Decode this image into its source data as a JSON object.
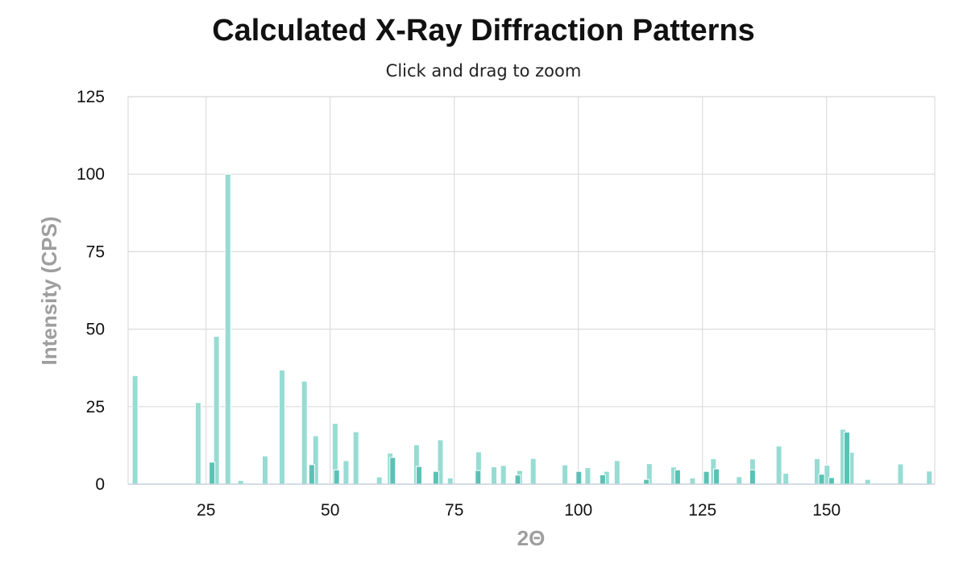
{
  "chart_data": {
    "type": "bar",
    "title": "Calculated X-Ray Diffraction Patterns",
    "subtitle": "Click and drag to zoom",
    "xlabel": "2Θ",
    "ylabel": "Intensity (CPS)",
    "xlim": [
      9.3,
      171.8
    ],
    "ylim": [
      0,
      125
    ],
    "x_ticks": [
      25,
      50,
      75,
      100,
      125,
      150
    ],
    "y_ticks": [
      0,
      25,
      50,
      75,
      100,
      125
    ],
    "grid": true,
    "legend": "none",
    "series": [
      {
        "color": "#97dcd3",
        "x": [
          10.7,
          23.4,
          27.1,
          29.4,
          32.0,
          36.9,
          40.3,
          44.8,
          47.1,
          51.0,
          53.2,
          55.2,
          59.9,
          62.1,
          67.4,
          72.2,
          74.2,
          79.9,
          83.0,
          84.9,
          88.2,
          90.9,
          97.3,
          101.9,
          105.7,
          107.8,
          114.3,
          119.2,
          123.0,
          127.2,
          132.4,
          135.1,
          140.4,
          141.8,
          148.1,
          150.1,
          153.3,
          155.0,
          158.3,
          164.9,
          170.7
        ],
        "values": [
          35,
          26.3,
          47.7,
          100,
          1.2,
          9.1,
          36.8,
          33.2,
          15.6,
          19.6,
          7.6,
          16.9,
          2.3,
          10.0,
          12.7,
          14.3,
          2.0,
          10.4,
          5.6,
          6.0,
          4.4,
          8.3,
          6.2,
          5.3,
          4.1,
          7.6,
          6.6,
          5.5,
          2.0,
          8.2,
          2.4,
          8.1,
          12.3,
          3.5,
          8.2,
          6.1,
          17.7,
          10.3,
          1.5,
          6.5,
          4.2
        ]
      },
      {
        "color": "#5ac2b5",
        "x": [
          26.2,
          46.3,
          51.3,
          62.6,
          67.9,
          71.3,
          79.8,
          87.8,
          100.1,
          104.9,
          113.7,
          120.0,
          125.8,
          127.8,
          135.1,
          149.0,
          151.0,
          154.1
        ],
        "values": [
          7.1,
          6.3,
          4.6,
          8.6,
          5.7,
          4.1,
          4.4,
          2.9,
          4.1,
          3.0,
          1.5,
          4.6,
          4.1,
          4.9,
          4.6,
          3.2,
          2.1,
          16.8
        ]
      }
    ]
  },
  "toolbar": {
    "zoom_hint": "Click and drag to zoom"
  }
}
